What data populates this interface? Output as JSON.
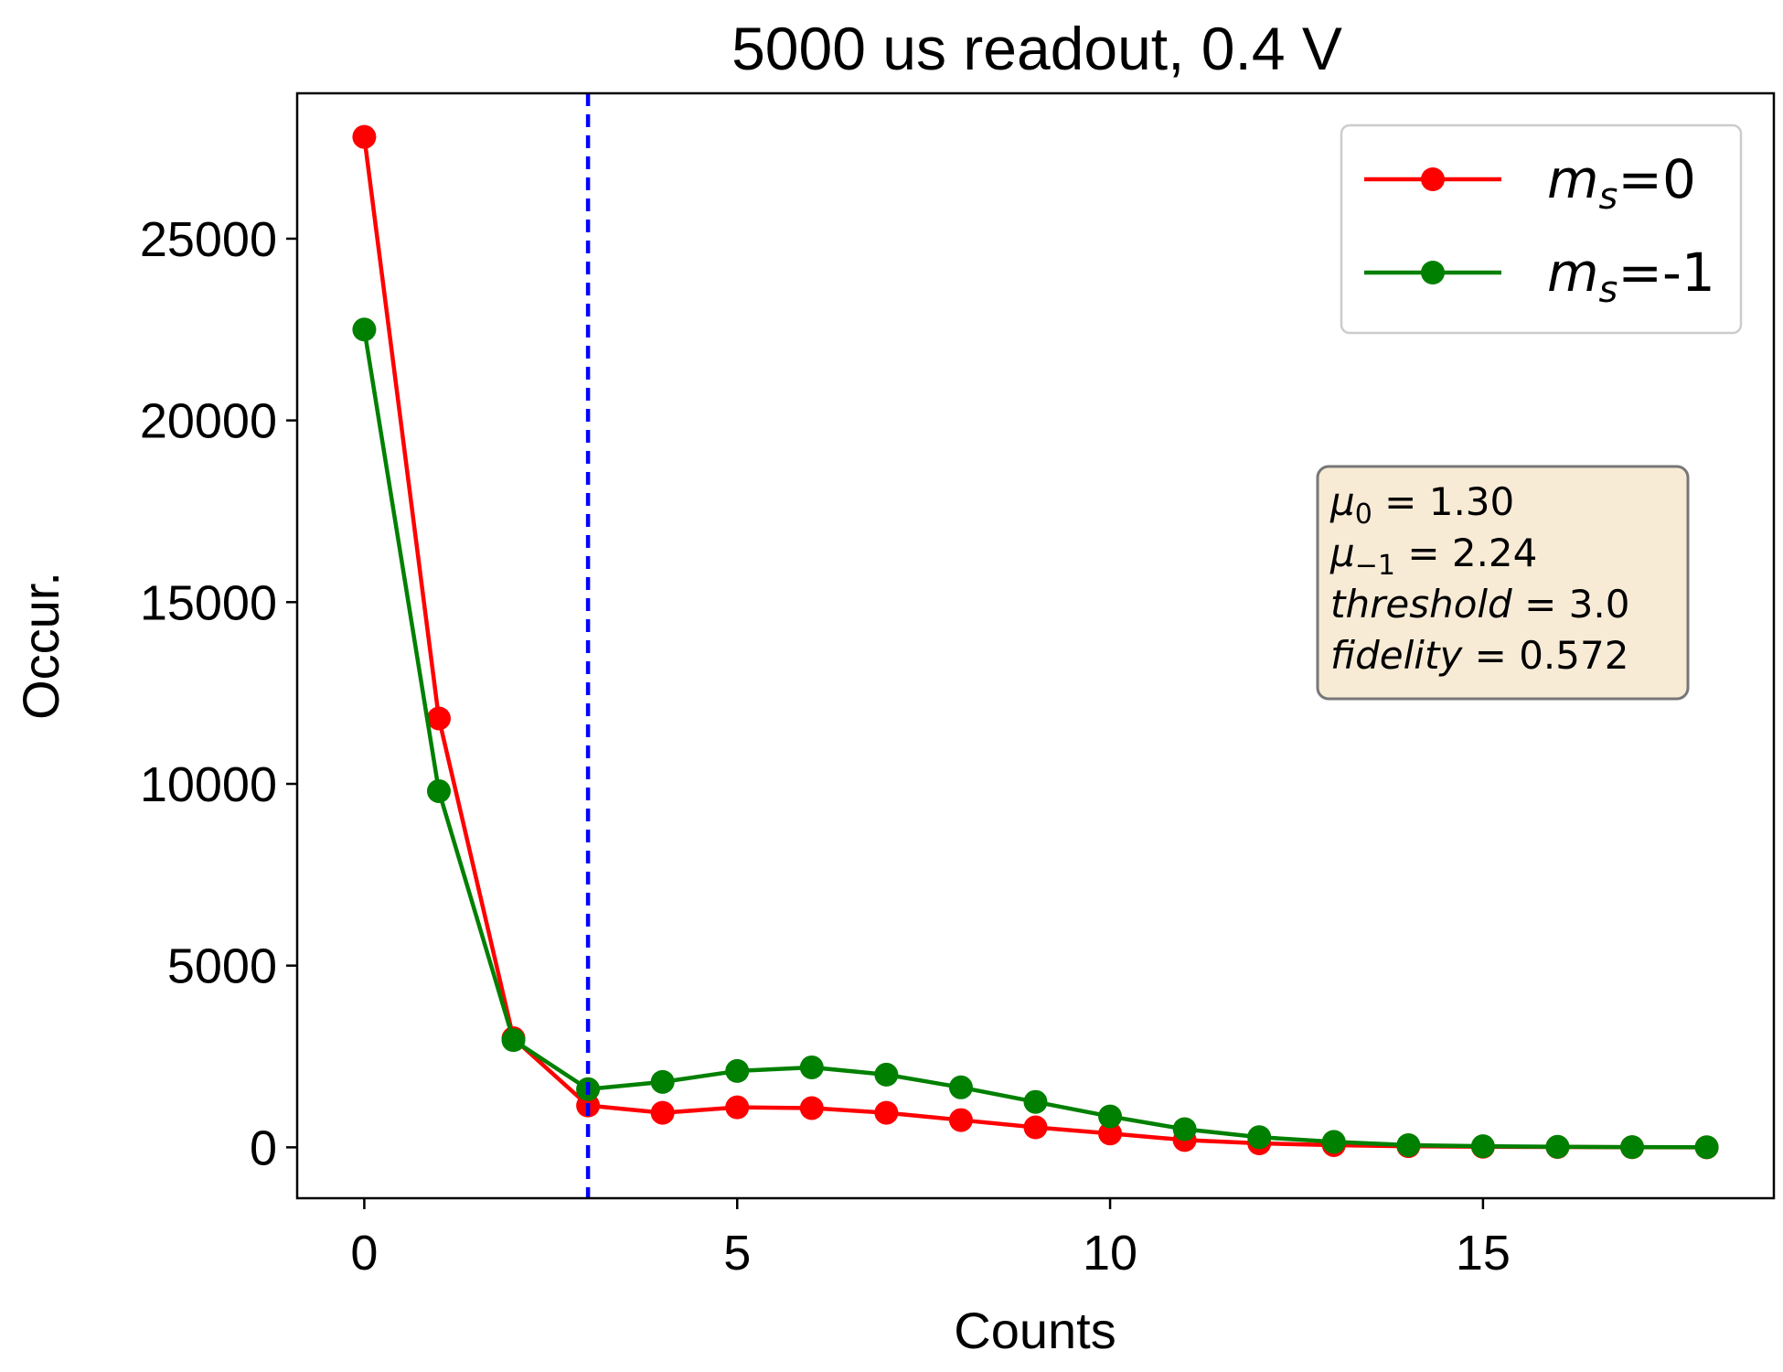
{
  "chart_data": {
    "type": "line",
    "title": "5000 us readout, 0.4 V",
    "xlabel": "Counts",
    "ylabel": "Occur.",
    "xlim": [
      -0.9,
      18.9
    ],
    "ylim": [
      -1400,
      29000
    ],
    "xticks": [
      0,
      5,
      10,
      15
    ],
    "yticks": [
      0,
      5000,
      10000,
      15000,
      20000,
      25000
    ],
    "grid": false,
    "legend_position": "top-right",
    "x": [
      0,
      1,
      2,
      3,
      4,
      5,
      6,
      7,
      8,
      9,
      10,
      11,
      12,
      13,
      14,
      15,
      16,
      17,
      18
    ],
    "series": [
      {
        "name_main": "m",
        "name_sub": "s",
        "name_rest": "=0",
        "color": "#ff0000",
        "values": [
          27800,
          11800,
          3000,
          1150,
          950,
          1100,
          1080,
          950,
          750,
          550,
          380,
          200,
          110,
          60,
          30,
          15,
          8,
          3,
          1
        ]
      },
      {
        "name_main": "m",
        "name_sub": "s",
        "name_rest": "=-1",
        "color": "#008000",
        "values": [
          22500,
          9800,
          2950,
          1600,
          1800,
          2100,
          2200,
          2000,
          1650,
          1250,
          850,
          500,
          280,
          150,
          60,
          30,
          15,
          5,
          2
        ]
      }
    ],
    "threshold_line": {
      "x": 3.0,
      "color": "#0000ff",
      "style": "dashed"
    },
    "annotation": {
      "background": "#f7ebd6",
      "lines": [
        {
          "sym": "μ",
          "sub": "0",
          "rest": " = 1.30"
        },
        {
          "sym": "μ",
          "sub": "−1",
          "rest": " = 2.24"
        },
        {
          "sym": "threshold",
          "sub": "",
          "rest": " = 3.0"
        },
        {
          "sym": "fidelity",
          "sub": "",
          "rest": " = 0.572"
        }
      ]
    }
  }
}
